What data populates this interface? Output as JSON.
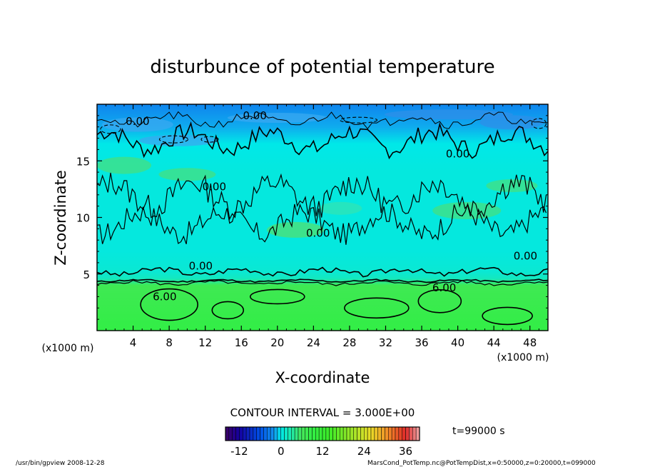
{
  "chart_data": {
    "type": "heatmap",
    "title": "disturbunce of potential temperature",
    "xlabel": "X-coordinate",
    "ylabel": "Z-coordinate",
    "x_unit": "(x1000 m)",
    "y_unit": "(x1000 m)",
    "xlim": [
      0,
      50
    ],
    "ylim": [
      0,
      20
    ],
    "x_ticks": [
      4,
      8,
      12,
      16,
      20,
      24,
      28,
      32,
      36,
      40,
      44,
      48
    ],
    "y_ticks": [
      5,
      10,
      15
    ],
    "contour_interval": "CONTOUR INTERVAL = 3.000E+00",
    "contour_labels": [
      {
        "text": "0.00",
        "x": 4.5,
        "z": 18.5
      },
      {
        "text": "0.00",
        "x": 17.5,
        "z": 19.0
      },
      {
        "text": "0.00",
        "x": 40.0,
        "z": 15.6
      },
      {
        "text": "0.00",
        "x": 13.0,
        "z": 12.7
      },
      {
        "text": "0.00",
        "x": 24.5,
        "z": 8.6
      },
      {
        "text": "0.00",
        "x": 11.5,
        "z": 5.7
      },
      {
        "text": "0.00",
        "x": 47.5,
        "z": 6.6
      },
      {
        "text": "6.00",
        "x": 7.5,
        "z": 3.0
      },
      {
        "text": "6.00",
        "x": 38.5,
        "z": 3.8
      }
    ],
    "colorbar": {
      "min": -16,
      "max": 40,
      "ticks": [
        -12,
        0,
        12,
        24,
        36
      ]
    },
    "time_label": "t=99000 s",
    "field_profile": [
      {
        "z": 0,
        "value": 9
      },
      {
        "z": 4,
        "value": 7
      },
      {
        "z": 4.6,
        "value": 2
      },
      {
        "z": 5.2,
        "value": 1
      },
      {
        "z": 7,
        "value": 0.5
      },
      {
        "z": 14,
        "value": 0.5
      },
      {
        "z": 16.5,
        "value": 0
      },
      {
        "z": 18,
        "value": -1.5
      },
      {
        "z": 20,
        "value": -3
      }
    ],
    "colors": {
      "deep_blue": "#2a6fe8",
      "sky_blue": "#3db4f0",
      "cyan": "#00e8e8",
      "aqua_green": "#22e8b8",
      "light_green": "#5ae65a",
      "bright_green": "#33ee44"
    }
  },
  "footer": {
    "left": "/usr/bin/gpview  2008-12-28",
    "right": "MarsCond_PotTemp.nc@PotTempDist,x=0:50000,z=0:20000,t=099000"
  }
}
